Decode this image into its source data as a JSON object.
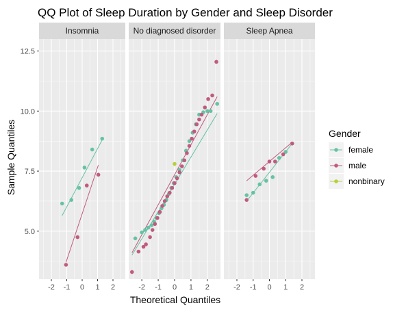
{
  "chart_data": {
    "type": "scatter",
    "subtype": "qq-plot",
    "title": "QQ Plot of Sleep Duration by Gender and Sleep Disorder",
    "xlabel": "Theoretical Quantiles",
    "ylabel": "Sample Quantiles",
    "xlim": [
      -2.8,
      2.8
    ],
    "ylim": [
      3.0,
      13.0
    ],
    "x_ticks": [
      -2,
      -1,
      0,
      1,
      2
    ],
    "x_tick_labels": [
      "-2",
      "-1",
      "0",
      "1",
      "2"
    ],
    "y_ticks": [
      5.0,
      7.5,
      10.0,
      12.5
    ],
    "y_tick_labels": [
      "5.0",
      "7.5",
      "10.0",
      "12.5"
    ],
    "grid": true,
    "legend": {
      "title": "Gender",
      "position": "right",
      "entries": [
        {
          "label": "female",
          "color": "#66c2a5"
        },
        {
          "label": "male",
          "color": "#c05a7f"
        },
        {
          "label": "nonbinary",
          "color": "#b8cf3a"
        }
      ]
    },
    "facets": [
      {
        "name": "Insomnia",
        "series": [
          {
            "name": "female",
            "points": [
              [
                -1.3,
                6.15
              ],
              [
                -0.7,
                6.3
              ],
              [
                -0.2,
                6.8
              ],
              [
                0.15,
                7.65
              ],
              [
                0.65,
                8.4
              ],
              [
                1.3,
                8.85
              ]
            ],
            "line": [
              [
                -1.3,
                5.65
              ],
              [
                1.3,
                8.8
              ]
            ]
          },
          {
            "name": "male",
            "points": [
              [
                -1.05,
                3.6
              ],
              [
                -0.3,
                4.75
              ],
              [
                0.3,
                6.9
              ],
              [
                1.05,
                7.35
              ]
            ],
            "line": [
              [
                -1.05,
                3.7
              ],
              [
                1.05,
                7.75
              ]
            ]
          }
        ]
      },
      {
        "name": "No diagnosed disorder",
        "series": [
          {
            "name": "female",
            "points": [
              [
                -2.4,
                4.7
              ],
              [
                -2.0,
                4.95
              ],
              [
                -1.8,
                5.05
              ],
              [
                -1.6,
                5.15
              ],
              [
                -1.4,
                5.25
              ],
              [
                -1.25,
                5.4
              ],
              [
                -1.1,
                5.55
              ],
              [
                -0.95,
                5.75
              ],
              [
                -0.8,
                5.95
              ],
              [
                -0.65,
                6.1
              ],
              [
                -0.5,
                6.3
              ],
              [
                -0.35,
                6.55
              ],
              [
                -0.2,
                6.8
              ],
              [
                -0.05,
                7.0
              ],
              [
                0.1,
                7.25
              ],
              [
                0.3,
                7.55
              ],
              [
                0.5,
                7.95
              ],
              [
                0.7,
                8.35
              ],
              [
                0.9,
                8.75
              ],
              [
                1.1,
                9.1
              ],
              [
                1.3,
                9.45
              ],
              [
                1.5,
                9.85
              ],
              [
                1.75,
                9.95
              ],
              [
                2.0,
                10.0
              ],
              [
                2.2,
                10.0
              ],
              [
                2.6,
                10.3
              ]
            ],
            "line": [
              [
                -2.6,
                4.0
              ],
              [
                2.6,
                9.9
              ]
            ]
          },
          {
            "name": "male",
            "points": [
              [
                -2.6,
                3.3
              ],
              [
                -2.2,
                4.15
              ],
              [
                -1.9,
                4.35
              ],
              [
                -1.75,
                4.45
              ],
              [
                -1.5,
                4.75
              ],
              [
                -1.35,
                5.05
              ],
              [
                -1.2,
                5.3
              ],
              [
                -1.05,
                5.55
              ],
              [
                -0.9,
                5.8
              ],
              [
                -0.75,
                6.05
              ],
              [
                -0.6,
                6.25
              ],
              [
                -0.45,
                6.45
              ],
              [
                -0.3,
                6.6
              ],
              [
                -0.15,
                6.8
              ],
              [
                0.0,
                7.0
              ],
              [
                0.15,
                7.2
              ],
              [
                0.3,
                7.45
              ],
              [
                0.45,
                7.7
              ],
              [
                0.6,
                7.95
              ],
              [
                0.75,
                8.25
              ],
              [
                0.9,
                8.55
              ],
              [
                1.05,
                8.85
              ],
              [
                1.2,
                9.15
              ],
              [
                1.35,
                9.45
              ],
              [
                1.5,
                9.65
              ],
              [
                1.65,
                9.85
              ],
              [
                1.85,
                10.15
              ],
              [
                2.05,
                10.5
              ],
              [
                2.3,
                10.65
              ],
              [
                2.55,
                12.05
              ]
            ],
            "line": [
              [
                -2.6,
                4.1
              ],
              [
                2.6,
                10.6
              ]
            ]
          },
          {
            "name": "nonbinary",
            "points": [
              [
                0.0,
                7.8
              ]
            ],
            "line": []
          }
        ]
      },
      {
        "name": "Sleep Apnea",
        "series": [
          {
            "name": "female",
            "points": [
              [
                -1.4,
                6.5
              ],
              [
                -1.0,
                6.6
              ],
              [
                -0.6,
                6.95
              ],
              [
                -0.2,
                7.1
              ],
              [
                0.2,
                7.25
              ],
              [
                0.6,
                8.05
              ],
              [
                1.0,
                8.3
              ],
              [
                1.4,
                8.65
              ]
            ],
            "line": [
              [
                -1.4,
                6.25
              ],
              [
                1.4,
                8.65
              ]
            ]
          },
          {
            "name": "male",
            "points": [
              [
                -1.4,
                6.3
              ],
              [
                -0.85,
                7.3
              ],
              [
                -0.35,
                7.6
              ],
              [
                0.0,
                7.9
              ],
              [
                0.35,
                7.9
              ],
              [
                0.85,
                8.2
              ],
              [
                1.4,
                8.65
              ]
            ],
            "line": [
              [
                -1.4,
                7.1
              ],
              [
                1.4,
                8.7
              ]
            ]
          }
        ]
      }
    ]
  }
}
